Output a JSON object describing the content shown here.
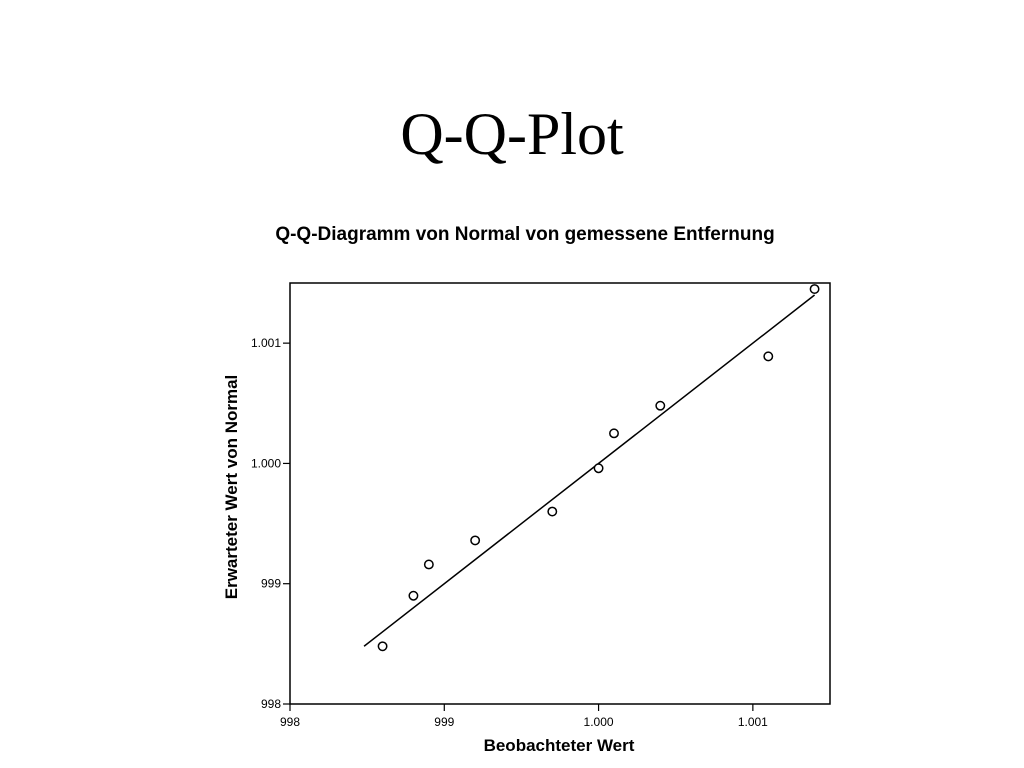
{
  "slide": {
    "title": "Q-Q-Plot"
  },
  "chart_data": {
    "type": "scatter",
    "title": "Q-Q-Diagramm von Normal von gemessene Entfernung",
    "xlabel": "Beobachteter Wert",
    "ylabel": "Erwarteter Wert von Normal",
    "xlim": [
      998,
      1001.5
    ],
    "ylim": [
      998,
      1001.5
    ],
    "x_ticks": [
      {
        "value": 998,
        "label": "998"
      },
      {
        "value": 999,
        "label": "999"
      },
      {
        "value": 1000,
        "label": "1.000"
      },
      {
        "value": 1001,
        "label": "1.001"
      }
    ],
    "y_ticks": [
      {
        "value": 998,
        "label": "998"
      },
      {
        "value": 999,
        "label": "999"
      },
      {
        "value": 1000,
        "label": "1.000"
      },
      {
        "value": 1001,
        "label": "1.001"
      }
    ],
    "grid": false,
    "points": [
      {
        "x": 998.6,
        "y": 998.48
      },
      {
        "x": 998.8,
        "y": 998.9
      },
      {
        "x": 998.9,
        "y": 999.16
      },
      {
        "x": 999.2,
        "y": 999.36
      },
      {
        "x": 999.7,
        "y": 999.6
      },
      {
        "x": 1000.0,
        "y": 999.96
      },
      {
        "x": 1000.1,
        "y": 1000.25
      },
      {
        "x": 1000.4,
        "y": 1000.48
      },
      {
        "x": 1001.1,
        "y": 1000.89
      },
      {
        "x": 1001.4,
        "y": 1001.45
      }
    ],
    "reference_line": {
      "x": [
        998.48,
        1001.4
      ],
      "y": [
        998.48,
        1001.4
      ]
    },
    "marker": "open-circle",
    "colors": {
      "marker": "#000000",
      "line": "#000000",
      "frame": "#000000"
    }
  }
}
